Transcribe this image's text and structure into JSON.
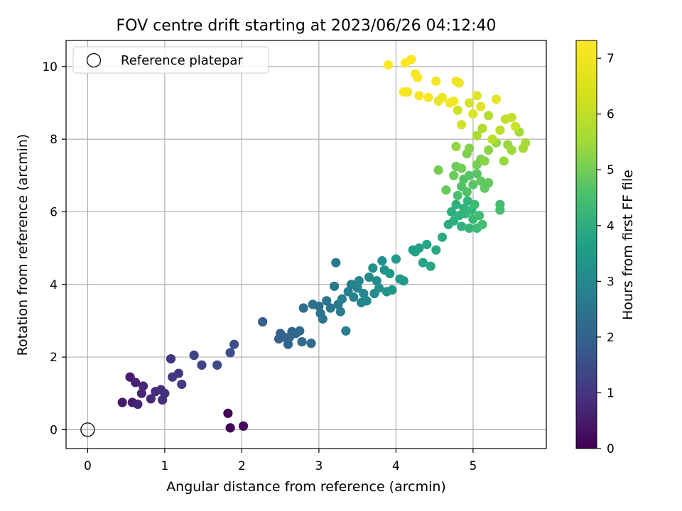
{
  "chart_data": {
    "type": "scatter",
    "title": "FOV centre drift starting at 2023/06/26 04:12:40",
    "xlabel": "Angular distance from reference (arcmin)",
    "ylabel": "Rotation from reference (arcmin)",
    "xlim": [
      -0.28,
      5.95
    ],
    "ylim": [
      -0.52,
      10.72
    ],
    "xticks": [
      "0",
      "1",
      "2",
      "3",
      "4",
      "5"
    ],
    "yticks": [
      "0",
      "2",
      "4",
      "6",
      "8",
      "10"
    ],
    "grid": true,
    "legend": {
      "placement": "top-left",
      "entries": [
        "Reference platepar"
      ]
    },
    "reference": {
      "x": 0,
      "y": 0,
      "marker": "open-circle"
    },
    "colorbar": {
      "label": "Hours from first FF file",
      "colormap": "viridis",
      "range": [
        0,
        7.32
      ],
      "ticks": [
        "0",
        "1",
        "2",
        "3",
        "4",
        "5",
        "6",
        "7"
      ]
    },
    "points": [
      [
        1.82,
        0.45,
        0.05
      ],
      [
        1.85,
        0.05,
        0.1
      ],
      [
        2.02,
        0.1,
        0.15
      ],
      [
        0.45,
        0.75,
        0.5
      ],
      [
        0.55,
        1.45,
        0.55
      ],
      [
        0.58,
        0.75,
        0.6
      ],
      [
        0.62,
        1.3,
        0.65
      ],
      [
        0.65,
        0.7,
        0.7
      ],
      [
        0.7,
        1.0,
        0.75
      ],
      [
        0.72,
        1.2,
        0.8
      ],
      [
        0.82,
        0.85,
        0.85
      ],
      [
        0.88,
        1.05,
        0.9
      ],
      [
        0.95,
        1.1,
        0.95
      ],
      [
        0.97,
        0.82,
        1.0
      ],
      [
        1.0,
        1.0,
        1.05
      ],
      [
        1.08,
        1.95,
        1.1
      ],
      [
        1.1,
        1.45,
        1.15
      ],
      [
        1.18,
        1.55,
        1.2
      ],
      [
        1.22,
        1.25,
        1.3
      ],
      [
        1.38,
        2.05,
        1.4
      ],
      [
        1.48,
        1.78,
        1.5
      ],
      [
        1.68,
        1.78,
        1.6
      ],
      [
        1.85,
        2.12,
        1.7
      ],
      [
        1.9,
        2.35,
        1.75
      ],
      [
        2.27,
        2.97,
        2.2
      ],
      [
        2.48,
        2.5,
        2.25
      ],
      [
        2.5,
        2.65,
        2.3
      ],
      [
        2.55,
        2.55,
        2.3
      ],
      [
        2.6,
        2.35,
        2.35
      ],
      [
        2.62,
        2.55,
        2.4
      ],
      [
        2.65,
        2.7,
        2.4
      ],
      [
        2.7,
        2.65,
        2.45
      ],
      [
        2.75,
        2.72,
        2.5
      ],
      [
        2.78,
        2.42,
        2.5
      ],
      [
        2.8,
        3.35,
        2.55
      ],
      [
        2.9,
        2.38,
        2.6
      ],
      [
        2.92,
        3.45,
        2.65
      ],
      [
        3.0,
        3.4,
        2.7
      ],
      [
        3.02,
        3.2,
        2.75
      ],
      [
        3.05,
        3.05,
        2.8
      ],
      [
        3.1,
        3.55,
        2.85
      ],
      [
        3.15,
        3.35,
        2.9
      ],
      [
        3.2,
        3.95,
        2.95
      ],
      [
        3.22,
        4.6,
        3.0
      ],
      [
        3.25,
        3.45,
        3.0
      ],
      [
        3.28,
        3.25,
        3.05
      ],
      [
        3.3,
        3.6,
        3.1
      ],
      [
        3.35,
        2.72,
        3.1
      ],
      [
        3.38,
        3.8,
        3.15
      ],
      [
        3.42,
        4.0,
        3.2
      ],
      [
        3.45,
        3.65,
        3.25
      ],
      [
        3.5,
        3.9,
        3.3
      ],
      [
        3.52,
        4.1,
        3.35
      ],
      [
        3.55,
        3.5,
        3.35
      ],
      [
        3.58,
        3.75,
        3.4
      ],
      [
        3.62,
        3.55,
        3.45
      ],
      [
        3.65,
        4.2,
        3.5
      ],
      [
        3.7,
        4.45,
        3.55
      ],
      [
        3.72,
        3.75,
        3.55
      ],
      [
        3.75,
        4.1,
        3.6
      ],
      [
        3.78,
        3.9,
        3.65
      ],
      [
        3.82,
        4.65,
        3.7
      ],
      [
        3.85,
        4.4,
        3.75
      ],
      [
        3.88,
        3.8,
        3.8
      ],
      [
        3.92,
        4.3,
        3.85
      ],
      [
        3.95,
        3.85,
        3.9
      ],
      [
        4.0,
        4.7,
        3.95
      ],
      [
        4.05,
        4.15,
        4.0
      ],
      [
        4.1,
        4.1,
        4.0
      ],
      [
        4.22,
        4.95,
        4.1
      ],
      [
        4.25,
        4.9,
        4.15
      ],
      [
        4.3,
        5.0,
        4.2
      ],
      [
        4.35,
        4.6,
        4.25
      ],
      [
        4.4,
        5.1,
        4.3
      ],
      [
        4.45,
        4.5,
        4.35
      ],
      [
        4.52,
        4.95,
        4.4
      ],
      [
        4.6,
        5.3,
        4.5
      ],
      [
        4.68,
        5.65,
        4.55
      ],
      [
        4.72,
        6.0,
        4.6
      ],
      [
        4.75,
        5.75,
        4.6
      ],
      [
        4.78,
        6.2,
        4.65
      ],
      [
        4.82,
        5.9,
        4.7
      ],
      [
        4.85,
        5.6,
        4.7
      ],
      [
        4.88,
        6.1,
        4.75
      ],
      [
        4.9,
        5.95,
        4.8
      ],
      [
        4.93,
        6.3,
        4.85
      ],
      [
        4.95,
        5.55,
        4.85
      ],
      [
        4.98,
        6.05,
        4.9
      ],
      [
        5.0,
        5.8,
        4.95
      ],
      [
        5.02,
        6.2,
        5.0
      ],
      [
        5.05,
        5.55,
        5.0
      ],
      [
        5.08,
        5.9,
        5.05
      ],
      [
        5.12,
        5.65,
        5.1
      ],
      [
        5.35,
        6.2,
        5.1
      ],
      [
        5.35,
        6.05,
        5.15
      ],
      [
        4.8,
        6.45,
        5.2
      ],
      [
        4.85,
        6.7,
        5.25
      ],
      [
        4.88,
        6.9,
        5.3
      ],
      [
        4.92,
        6.55,
        5.3
      ],
      [
        4.95,
        7.0,
        5.35
      ],
      [
        5.0,
        6.75,
        5.4
      ],
      [
        5.05,
        7.05,
        5.45
      ],
      [
        5.1,
        6.85,
        5.5
      ],
      [
        5.15,
        6.65,
        5.5
      ],
      [
        5.2,
        6.8,
        5.55
      ],
      [
        4.65,
        6.6,
        5.6
      ],
      [
        4.75,
        7.0,
        5.65
      ],
      [
        4.78,
        7.25,
        5.7
      ],
      [
        4.85,
        7.2,
        5.75
      ],
      [
        4.55,
        7.15,
        5.8
      ],
      [
        5.05,
        7.3,
        5.8
      ],
      [
        5.1,
        7.45,
        5.85
      ],
      [
        4.92,
        7.6,
        5.9
      ],
      [
        4.95,
        7.75,
        5.95
      ],
      [
        5.15,
        7.4,
        6.0
      ],
      [
        5.2,
        7.7,
        6.05
      ],
      [
        4.78,
        7.8,
        6.1
      ],
      [
        5.3,
        7.9,
        6.15
      ],
      [
        5.4,
        7.4,
        6.2
      ],
      [
        5.45,
        7.85,
        6.2
      ],
      [
        5.5,
        7.7,
        6.25
      ],
      [
        5.6,
        8.2,
        6.3
      ],
      [
        5.65,
        7.75,
        6.3
      ],
      [
        5.68,
        7.9,
        6.35
      ],
      [
        5.05,
        8.1,
        6.4
      ],
      [
        5.12,
        8.3,
        6.45
      ],
      [
        5.2,
        8.65,
        6.5
      ],
      [
        5.25,
        8.0,
        6.55
      ],
      [
        5.35,
        8.25,
        6.6
      ],
      [
        5.42,
        8.55,
        6.65
      ],
      [
        5.5,
        8.6,
        6.7
      ],
      [
        5.55,
        8.35,
        6.75
      ],
      [
        4.8,
        8.8,
        6.8
      ],
      [
        4.85,
        8.4,
        6.85
      ],
      [
        4.95,
        9.0,
        6.9
      ],
      [
        5.0,
        8.7,
        6.95
      ],
      [
        5.05,
        9.2,
        7.0
      ],
      [
        5.1,
        8.9,
        7.0
      ],
      [
        5.3,
        9.1,
        7.05
      ],
      [
        4.55,
        9.05,
        7.1
      ],
      [
        4.6,
        9.15,
        7.15
      ],
      [
        4.7,
        9.0,
        7.2
      ],
      [
        4.75,
        9.05,
        7.2
      ],
      [
        4.42,
        9.15,
        7.25
      ],
      [
        4.3,
        9.2,
        7.25
      ],
      [
        3.9,
        10.05,
        7.3
      ],
      [
        4.12,
        10.1,
        7.3
      ],
      [
        4.2,
        10.2,
        7.3
      ],
      [
        4.25,
        9.8,
        7.25
      ],
      [
        4.28,
        9.7,
        7.25
      ],
      [
        4.52,
        9.6,
        7.2
      ],
      [
        4.78,
        9.6,
        7.2
      ],
      [
        4.82,
        9.55,
        7.15
      ],
      [
        4.1,
        9.3,
        7.25
      ],
      [
        4.15,
        9.3,
        7.25
      ]
    ]
  }
}
